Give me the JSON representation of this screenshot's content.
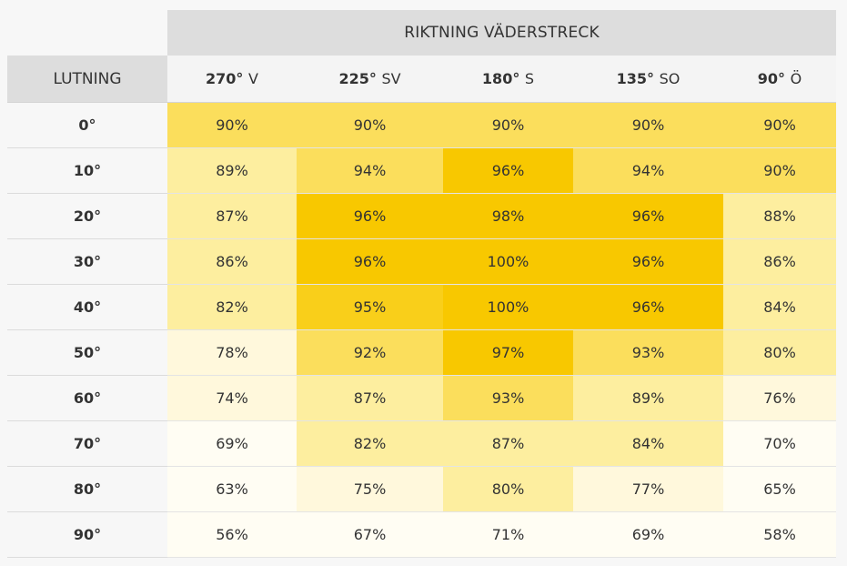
{
  "title": "RIKTNING VÄDERSTRECK",
  "row_header_label": "LUTNING",
  "colors": {
    "c100": "#f8c800",
    "c95": "#f9cf1a",
    "c92": "#fbde5c",
    "c88": "#fdee9f",
    "c78": "#fff8dc",
    "c0": "#fffdf3"
  },
  "chart_data": {
    "type": "heatmap",
    "title": "RIKTNING VÄDERSTRECK",
    "ylabel": "LUTNING",
    "columns": [
      {
        "angle": "270°",
        "dir": "V"
      },
      {
        "angle": "225°",
        "dir": "SV"
      },
      {
        "angle": "180°",
        "dir": "S"
      },
      {
        "angle": "135°",
        "dir": "SO"
      },
      {
        "angle": "90°",
        "dir": "Ö"
      }
    ],
    "rows": [
      "0°",
      "10°",
      "20°",
      "30°",
      "40°",
      "50°",
      "60°",
      "70°",
      "80°",
      "90°"
    ],
    "values": [
      [
        90,
        90,
        90,
        90,
        90
      ],
      [
        89,
        94,
        96,
        94,
        90
      ],
      [
        87,
        96,
        98,
        96,
        88
      ],
      [
        86,
        96,
        100,
        96,
        86
      ],
      [
        82,
        95,
        100,
        96,
        84
      ],
      [
        78,
        92,
        97,
        93,
        80
      ],
      [
        74,
        87,
        93,
        89,
        76
      ],
      [
        69,
        82,
        87,
        84,
        70
      ],
      [
        63,
        75,
        80,
        77,
        65
      ],
      [
        56,
        67,
        71,
        69,
        58
      ]
    ],
    "unit": "%"
  }
}
